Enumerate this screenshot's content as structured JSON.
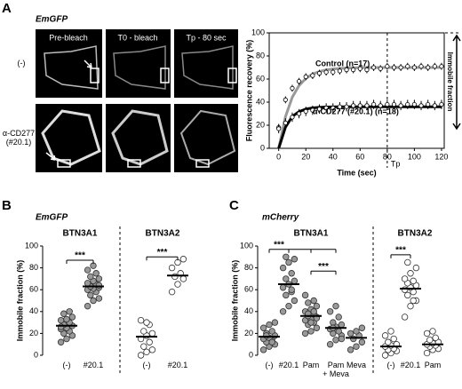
{
  "panel_labels": [
    "A",
    "B",
    "C"
  ],
  "images": {
    "title": "EmGFP",
    "columns": [
      "Pre-bleach",
      "T0 - bleach",
      "Tp - 80 sec"
    ],
    "rows": [
      "(-)",
      "α-CD277\n(#20.1)"
    ]
  },
  "chart_data": [
    {
      "type": "line",
      "ylabel": "Fluorescence recovery (%)",
      "xlabel": "Time (sec)",
      "xlim": [
        -7,
        122
      ],
      "ylim": [
        0,
        100
      ],
      "xticks": [
        0,
        20,
        40,
        60,
        80,
        100,
        120
      ],
      "yticks": [
        0,
        20,
        40,
        60,
        80,
        100
      ],
      "x": [
        0,
        5,
        10,
        15,
        20,
        25,
        30,
        35,
        40,
        45,
        50,
        55,
        60,
        65,
        70,
        75,
        80,
        85,
        90,
        95,
        100,
        105,
        110,
        115,
        120
      ],
      "series": [
        {
          "name": "Control (n=17)",
          "color": "#999999",
          "values": [
            18,
            42,
            52,
            58,
            62,
            63,
            65,
            66,
            66,
            67,
            68,
            68,
            69,
            68,
            70,
            69,
            71,
            70,
            70,
            71,
            70,
            71,
            70,
            71,
            71
          ],
          "errors": [
            3,
            3,
            3,
            3,
            3,
            3,
            3,
            3,
            3,
            3,
            3,
            3,
            3,
            3,
            3,
            3,
            3,
            3,
            3,
            3,
            3,
            3,
            3,
            3,
            3
          ],
          "fit": [
            0,
            27.5,
            44.2,
            54.4,
            60.5,
            64.3,
            66.5,
            67.9,
            68.7,
            69.2,
            69.5,
            69.7,
            69.8,
            69.9,
            69.9,
            70,
            70,
            70,
            70,
            70,
            70,
            70,
            70,
            70,
            70
          ]
        },
        {
          "name": "α-CD277 (#20.1) (n=18)",
          "color": "#000000",
          "values": [
            17,
            22,
            27,
            30,
            32,
            33,
            34,
            35,
            35,
            36,
            36,
            37,
            37,
            37,
            38,
            37,
            38,
            38,
            37,
            38,
            38,
            37,
            38,
            37,
            38
          ],
          "errors": [
            4,
            4,
            4,
            4,
            4,
            4,
            4,
            4,
            4,
            4,
            4,
            4,
            4,
            4,
            4,
            4,
            4,
            4,
            4,
            4,
            4,
            4,
            4,
            4,
            4
          ],
          "fit": [
            0,
            18.3,
            27.6,
            31.8,
            34,
            35,
            35.5,
            35.8,
            35.9,
            36,
            36,
            36,
            36,
            36,
            36,
            36,
            36,
            36,
            36,
            36,
            36,
            36,
            36,
            36,
            36
          ]
        }
      ],
      "reference_lines": {
        "y": 100,
        "x": 80
      },
      "annotations": {
        "tp": "Tp",
        "immobile": "Immobile fraction"
      }
    },
    {
      "type": "dotplot",
      "title": "EmGFP",
      "ylabel": "Immobile fraction (%)",
      "ylim": [
        0,
        100
      ],
      "yticks": [
        0,
        20,
        40,
        60,
        80,
        100
      ],
      "groups": [
        {
          "name": "BTN3A1",
          "categories": [
            "(-)",
            "#20.1"
          ],
          "fill": "#999999",
          "values": [
            [
              12,
              15,
              18,
              20,
              22,
              24,
              25,
              27,
              28,
              30,
              32,
              33,
              35,
              38,
              40,
              26
            ],
            [
              45,
              50,
              52,
              55,
              58,
              60,
              61,
              62,
              63,
              65,
              66,
              68,
              70,
              72,
              75,
              78,
              82,
              64
            ]
          ],
          "means": [
            27,
            63
          ],
          "significance": [
            "***"
          ]
        },
        {
          "name": "BTN3A2",
          "categories": [
            "(-)",
            "#20.1"
          ],
          "fill": "#ffffff",
          "values": [
            [
              0,
              3,
              5,
              8,
              12,
              15,
              18,
              20,
              22,
              28,
              32,
              30
            ],
            [
              58,
              65,
              70,
              72,
              75,
              80,
              85,
              88
            ]
          ],
          "means": [
            17,
            73
          ],
          "significance": [
            "***"
          ]
        }
      ]
    },
    {
      "type": "dotplot",
      "title": "mCherry",
      "ylabel": "Immobile fraction (%)",
      "ylim": [
        0,
        100
      ],
      "yticks": [
        0,
        20,
        40,
        60,
        80,
        100
      ],
      "groups": [
        {
          "name": "BTN3A1",
          "categories": [
            "(-)",
            "#20.1",
            "Pam",
            "Pam\n+ Meva",
            "Meva"
          ],
          "fill": "#999999",
          "values": [
            [
              5,
              8,
              10,
              12,
              14,
              15,
              16,
              18,
              20,
              22,
              25,
              28,
              30,
              18,
              12
            ],
            [
              40,
              45,
              50,
              55,
              58,
              62,
              65,
              68,
              70,
              75,
              80,
              85,
              88,
              90,
              60
            ],
            [
              20,
              22,
              25,
              28,
              30,
              32,
              33,
              35,
              36,
              38,
              40,
              42,
              45,
              48,
              50,
              55,
              30,
              34,
              38,
              40
            ],
            [
              10,
              14,
              18,
              20,
              22,
              24,
              26,
              28,
              30,
              35,
              40,
              45,
              15,
              25
            ],
            [
              5,
              8,
              12,
              15,
              18,
              20,
              22,
              25
            ]
          ],
          "means": [
            17,
            65,
            36,
            25,
            16
          ],
          "significance": [
            "***",
            "***"
          ]
        },
        {
          "name": "BTN3A2",
          "categories": [
            "(-)",
            "#20.1",
            "Pam"
          ],
          "fill": "#ffffff",
          "values": [
            [
              0,
              2,
              4,
              5,
              6,
              8,
              9,
              10,
              12,
              15,
              18,
              22
            ],
            [
              35,
              45,
              50,
              55,
              58,
              60,
              62,
              64,
              66,
              68,
              70,
              75,
              80,
              85,
              50
            ],
            [
              2,
              5,
              6,
              8,
              9,
              10,
              11,
              12,
              14,
              16,
              20,
              22
            ]
          ],
          "means": [
            8,
            61,
            10
          ],
          "significance": [
            "***"
          ]
        }
      ]
    }
  ]
}
